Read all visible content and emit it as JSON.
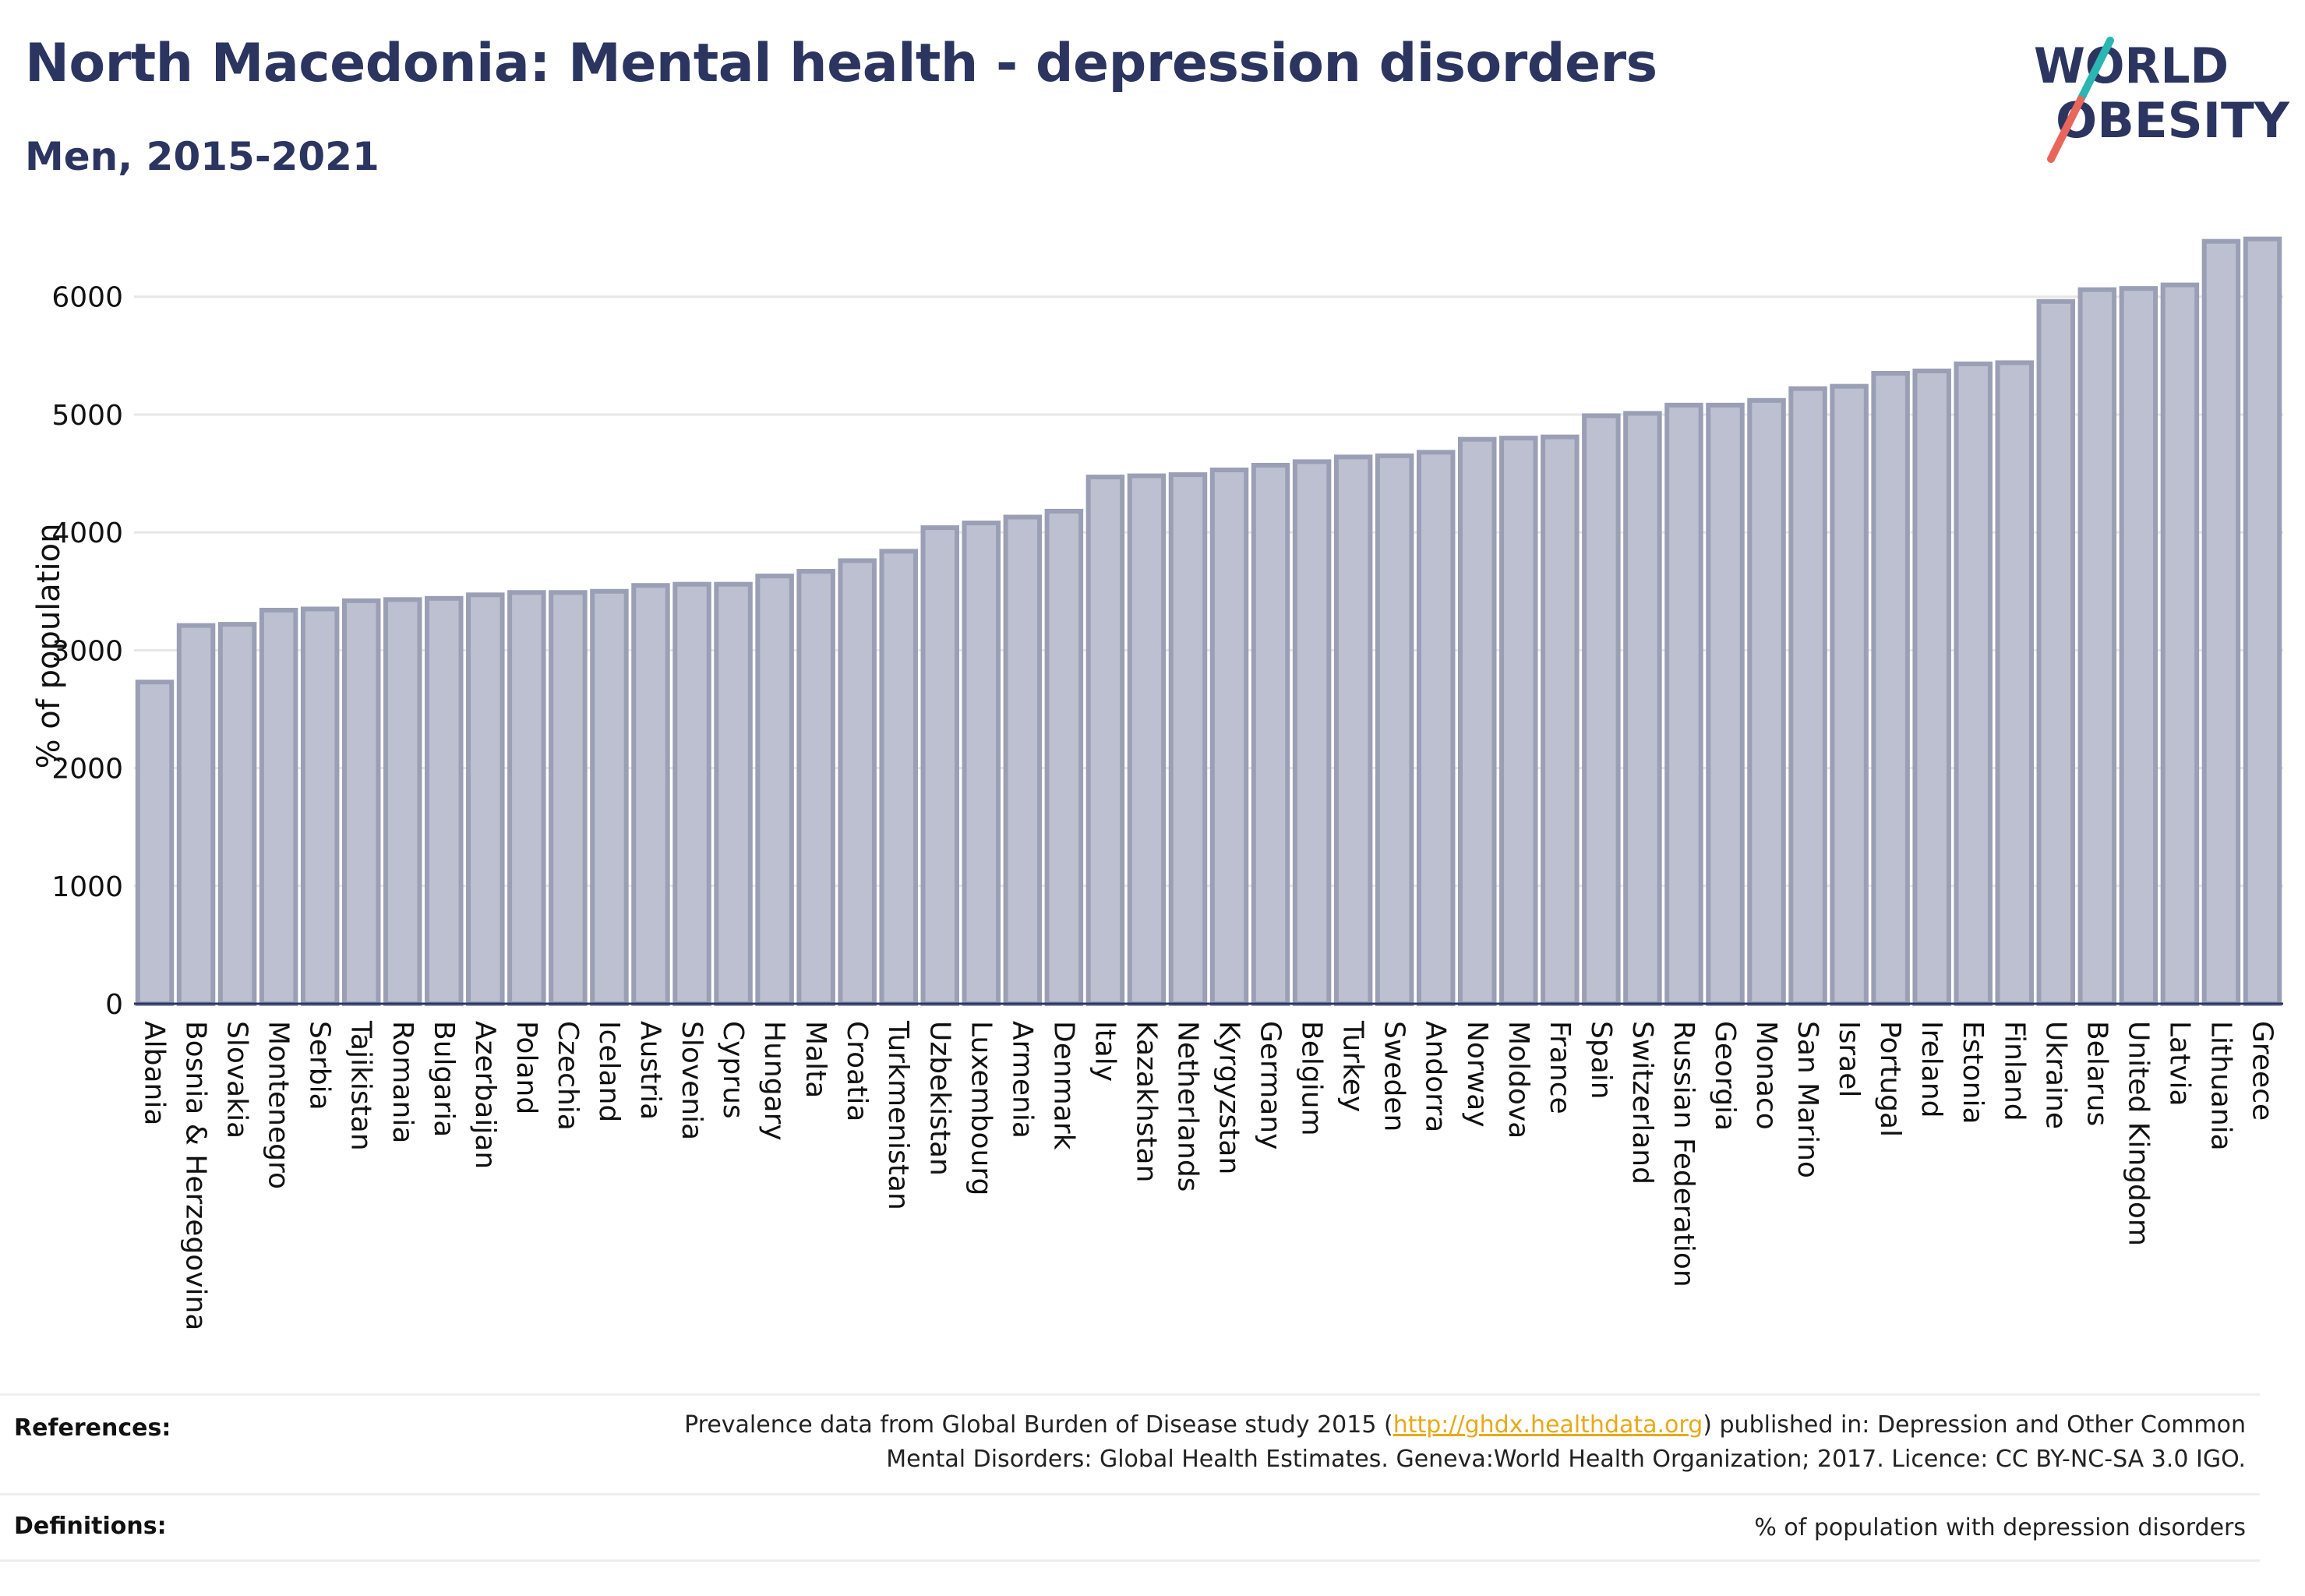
{
  "header": {
    "title": "North Macedonia: Mental health - depression disorders",
    "subtitle": "Men, 2015-2021"
  },
  "logo": {
    "line1": "WORLD",
    "line2": "OBESITY",
    "color_text": "#2b3560",
    "color_slash_top": "#2bb5b3",
    "color_slash_bottom": "#e8675a"
  },
  "colors": {
    "bar_fill": "#bcc0d1",
    "bar_stroke": "#9a9fb5",
    "grid": "#e6e6e6",
    "axis": "#2b3560"
  },
  "chart_data": {
    "type": "bar",
    "ylabel": "% of population",
    "ylim": [
      0,
      6600
    ],
    "yticks": [
      0,
      1000,
      2000,
      3000,
      4000,
      5000,
      6000
    ],
    "grid": true,
    "categories": [
      "Albania",
      "Bosnia & Herzegovina",
      "Slovakia",
      "Montenegro",
      "Serbia",
      "Tajikistan",
      "Romania",
      "Bulgaria",
      "Azerbaijan",
      "Poland",
      "Czechia",
      "Iceland",
      "Austria",
      "Slovenia",
      "Cyprus",
      "Hungary",
      "Malta",
      "Croatia",
      "Turkmenistan",
      "Uzbekistan",
      "Luxembourg",
      "Armenia",
      "Denmark",
      "Italy",
      "Kazakhstan",
      "Netherlands",
      "Kyrgyzstan",
      "Germany",
      "Belgium",
      "Turkey",
      "Sweden",
      "Andorra",
      "Norway",
      "Moldova",
      "France",
      "Spain",
      "Switzerland",
      "Russian Federation",
      "Georgia",
      "Monaco",
      "San Marino",
      "Israel",
      "Portugal",
      "Ireland",
      "Estonia",
      "Finland",
      "Ukraine",
      "Belarus",
      "United Kingdom",
      "Latvia",
      "Lithuania",
      "Greece"
    ],
    "values": [
      2730,
      3210,
      3220,
      3340,
      3350,
      3420,
      3430,
      3440,
      3470,
      3490,
      3490,
      3500,
      3550,
      3560,
      3560,
      3630,
      3670,
      3760,
      3840,
      4040,
      4080,
      4130,
      4180,
      4470,
      4480,
      4490,
      4530,
      4570,
      4600,
      4640,
      4650,
      4680,
      4790,
      4800,
      4810,
      4990,
      5010,
      5080,
      5080,
      5120,
      5220,
      5240,
      5350,
      5370,
      5430,
      5440,
      5960,
      6060,
      6070,
      6100,
      6470,
      6490
    ]
  },
  "footer": {
    "references_label": "References:",
    "references_line1_pre": "Prevalence data from Global Burden of Disease study 2015 (",
    "references_link": "http://ghdx.healthdata.org",
    "references_line1_post": ") published in: Depression and Other Common",
    "references_line2": "Mental Disorders: Global Health Estimates. Geneva:World Health Organization; 2017. Licence: CC BY-NC-SA 3.0 IGO.",
    "definitions_label": "Definitions:",
    "definitions_text": "% of population with depression disorders"
  }
}
